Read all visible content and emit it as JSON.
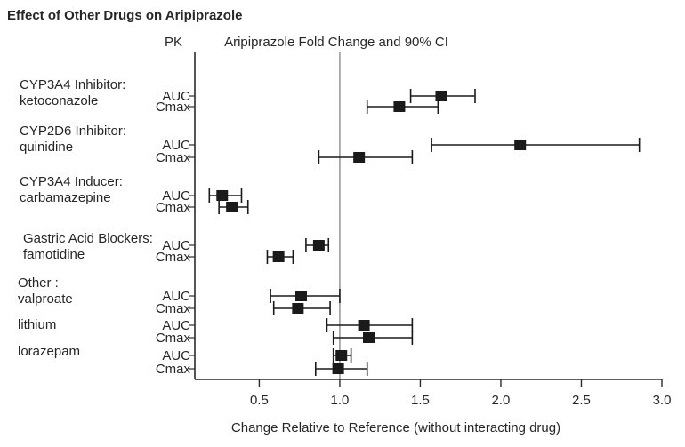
{
  "title": "Effect of Other Drugs on Aripiprazole",
  "chart_data": {
    "type": "scatter",
    "subtype": "forest-plot",
    "pk_header": "PK",
    "value_header": "Aripiprazole Fold Change and 90% CI",
    "xlabel": "Change Relative to Reference (without interacting drug)",
    "x_ticks": [
      0.5,
      1.0,
      1.5,
      2.0,
      2.5,
      3.0
    ],
    "x_tick_labels": [
      "0.5",
      "1.0",
      "1.5",
      "2.0",
      "2.5",
      "3.0"
    ],
    "xlim": [
      0.1,
      3.0
    ],
    "reference_value": 1.0,
    "grid": "off",
    "marker": "filled-square",
    "interval": "90% CI horizontal error bars",
    "groups": [
      {
        "label_lines": [
          "CYP3A4 Inhibitor:",
          "ketoconazole"
        ],
        "rows": [
          {
            "pk": "AUC",
            "value": 1.63,
            "lo": 1.44,
            "hi": 1.84
          },
          {
            "pk": "Cmax",
            "value": 1.37,
            "lo": 1.17,
            "hi": 1.61
          }
        ]
      },
      {
        "label_lines": [
          "CYP2D6 Inhibitor:",
          "quinidine"
        ],
        "rows": [
          {
            "pk": "AUC",
            "value": 2.12,
            "lo": 1.57,
            "hi": 2.86
          },
          {
            "pk": "Cmax",
            "value": 1.12,
            "lo": 0.87,
            "hi": 1.45
          }
        ]
      },
      {
        "label_lines": [
          "CYP3A4 Inducer:",
          "carbamazepine"
        ],
        "rows": [
          {
            "pk": "AUC",
            "value": 0.27,
            "lo": 0.19,
            "hi": 0.39
          },
          {
            "pk": "Cmax",
            "value": 0.33,
            "lo": 0.25,
            "hi": 0.43
          }
        ]
      },
      {
        "label_lines": [
          "Gastric Acid Blockers:",
          "famotidine"
        ],
        "rows": [
          {
            "pk": "AUC",
            "value": 0.87,
            "lo": 0.79,
            "hi": 0.93
          },
          {
            "pk": "Cmax",
            "value": 0.62,
            "lo": 0.55,
            "hi": 0.71
          }
        ]
      },
      {
        "label_lines": [
          "Other :",
          "valproate"
        ],
        "rows": [
          {
            "pk": "AUC",
            "value": 0.76,
            "lo": 0.57,
            "hi": 1.0
          },
          {
            "pk": "Cmax",
            "value": 0.74,
            "lo": 0.59,
            "hi": 0.94
          }
        ]
      },
      {
        "label_lines": [
          "lithium"
        ],
        "rows": [
          {
            "pk": "AUC",
            "value": 1.15,
            "lo": 0.92,
            "hi": 1.45
          },
          {
            "pk": "Cmax",
            "value": 1.18,
            "lo": 0.96,
            "hi": 1.45
          }
        ]
      },
      {
        "label_lines": [
          "lorazepam"
        ],
        "rows": [
          {
            "pk": "AUC",
            "value": 1.01,
            "lo": 0.96,
            "hi": 1.07
          },
          {
            "pk": "Cmax",
            "value": 0.99,
            "lo": 0.85,
            "hi": 1.17
          }
        ]
      }
    ],
    "colors": {
      "marks": "#1a1a1a",
      "text": "#262626",
      "reference_line": "#8c8c8c",
      "frame": "#2b2b2b"
    }
  }
}
